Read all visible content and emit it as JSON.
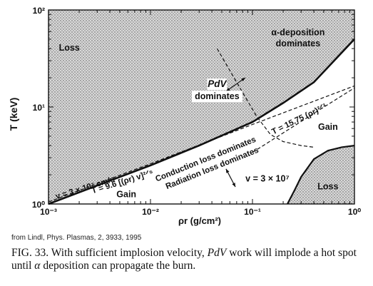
{
  "chart_data": {
    "type": "line",
    "xlabel": "ρr (g/cm²)",
    "ylabel": "T (keV)",
    "xscale": "log",
    "yscale": "log",
    "xlim": [
      0.001,
      1
    ],
    "ylim": [
      1,
      100
    ],
    "x_ticks": [
      "10⁻³",
      "10⁻²",
      "10⁻¹",
      "10⁰"
    ],
    "y_ticks": [
      "10⁰",
      "10¹",
      "10²"
    ],
    "curves": [
      {
        "label": "v = 3 × 10⁷ cm/s",
        "style": "solid",
        "x": [
          0.001,
          0.003,
          0.01,
          0.03,
          0.1,
          0.2,
          0.4,
          1.0
        ],
        "y": [
          1.0,
          1.55,
          2.5,
          4.0,
          7.0,
          11.0,
          18.0,
          50.0
        ]
      },
      {
        "label": "T = 9.6 [(ρr) v]^2/5",
        "style": "dashed",
        "x": [
          0.001,
          0.01,
          0.1,
          1.0
        ],
        "y": [
          1.05,
          2.6,
          6.6,
          16.5
        ]
      },
      {
        "label": "T = 15.75 (ρr)^2/3",
        "style": "dashed",
        "x": [
          0.1,
          0.2,
          0.4,
          1.0
        ],
        "y": [
          3.4,
          5.4,
          8.6,
          15.75
        ]
      },
      {
        "label": "α-deposition dominates",
        "style": "dashed",
        "x": [
          0.045,
          0.07,
          0.11,
          0.15,
          0.2,
          0.3,
          0.4
        ],
        "y": [
          40.0,
          18.0,
          8.0,
          5.2,
          4.4,
          4.0,
          3.85
        ]
      },
      {
        "label": "v = 3 × 10⁷",
        "style": "solid",
        "x": [
          0.22,
          0.26,
          0.3,
          0.4,
          0.55,
          0.75,
          1.0
        ],
        "y": [
          1.0,
          1.4,
          1.9,
          2.9,
          3.55,
          3.85,
          4.0
        ]
      }
    ],
    "region_labels": [
      {
        "text": "Loss",
        "x": 0.0016,
        "y": 38
      },
      {
        "text": "α-deposition",
        "x": 0.28,
        "y": 55
      },
      {
        "text": "dominates",
        "x": 0.28,
        "y": 42
      },
      {
        "text": "PdV",
        "x": 0.045,
        "y": 16
      },
      {
        "text": "dominates",
        "x": 0.045,
        "y": 12
      },
      {
        "text": "Gain",
        "x": 0.55,
        "y": 5.8
      },
      {
        "text": "v = 3 × 10⁷",
        "x": 0.14,
        "y": 1.7
      },
      {
        "text": "Loss",
        "x": 0.55,
        "y": 1.42
      },
      {
        "text": "Gain",
        "x": 0.0058,
        "y": 1.17
      }
    ],
    "rotated_labels": [
      {
        "text": "v = 3 × 10⁷ cm/s",
        "x": 0.0012,
        "y": 1.12,
        "angle": -17
      },
      {
        "text": "T = 9.6 [(ρr) v]²ᐟ⁵",
        "x": 0.0027,
        "y": 1.28,
        "angle": -17
      },
      {
        "text": "Conduction loss dominates",
        "x": 0.0115,
        "y": 1.7,
        "angle": -22
      },
      {
        "text": "Radiation loss dominates",
        "x": 0.0145,
        "y": 1.42,
        "angle": -22
      },
      {
        "text": "T = 15.75 (ρr)²ᐟ³",
        "x": 0.16,
        "y": 5.2,
        "angle": -26
      }
    ]
  },
  "source_text": "from Lindl, Phys. Plasmas, 2, 3933, 1995",
  "caption": {
    "prefix": "FIG. 33. With sufficient implosion velocity, ",
    "pdv": "PdV",
    "middle": " work will implode a hot spot until ",
    "alpha": "α",
    "suffix": " deposition can propagate the burn."
  }
}
